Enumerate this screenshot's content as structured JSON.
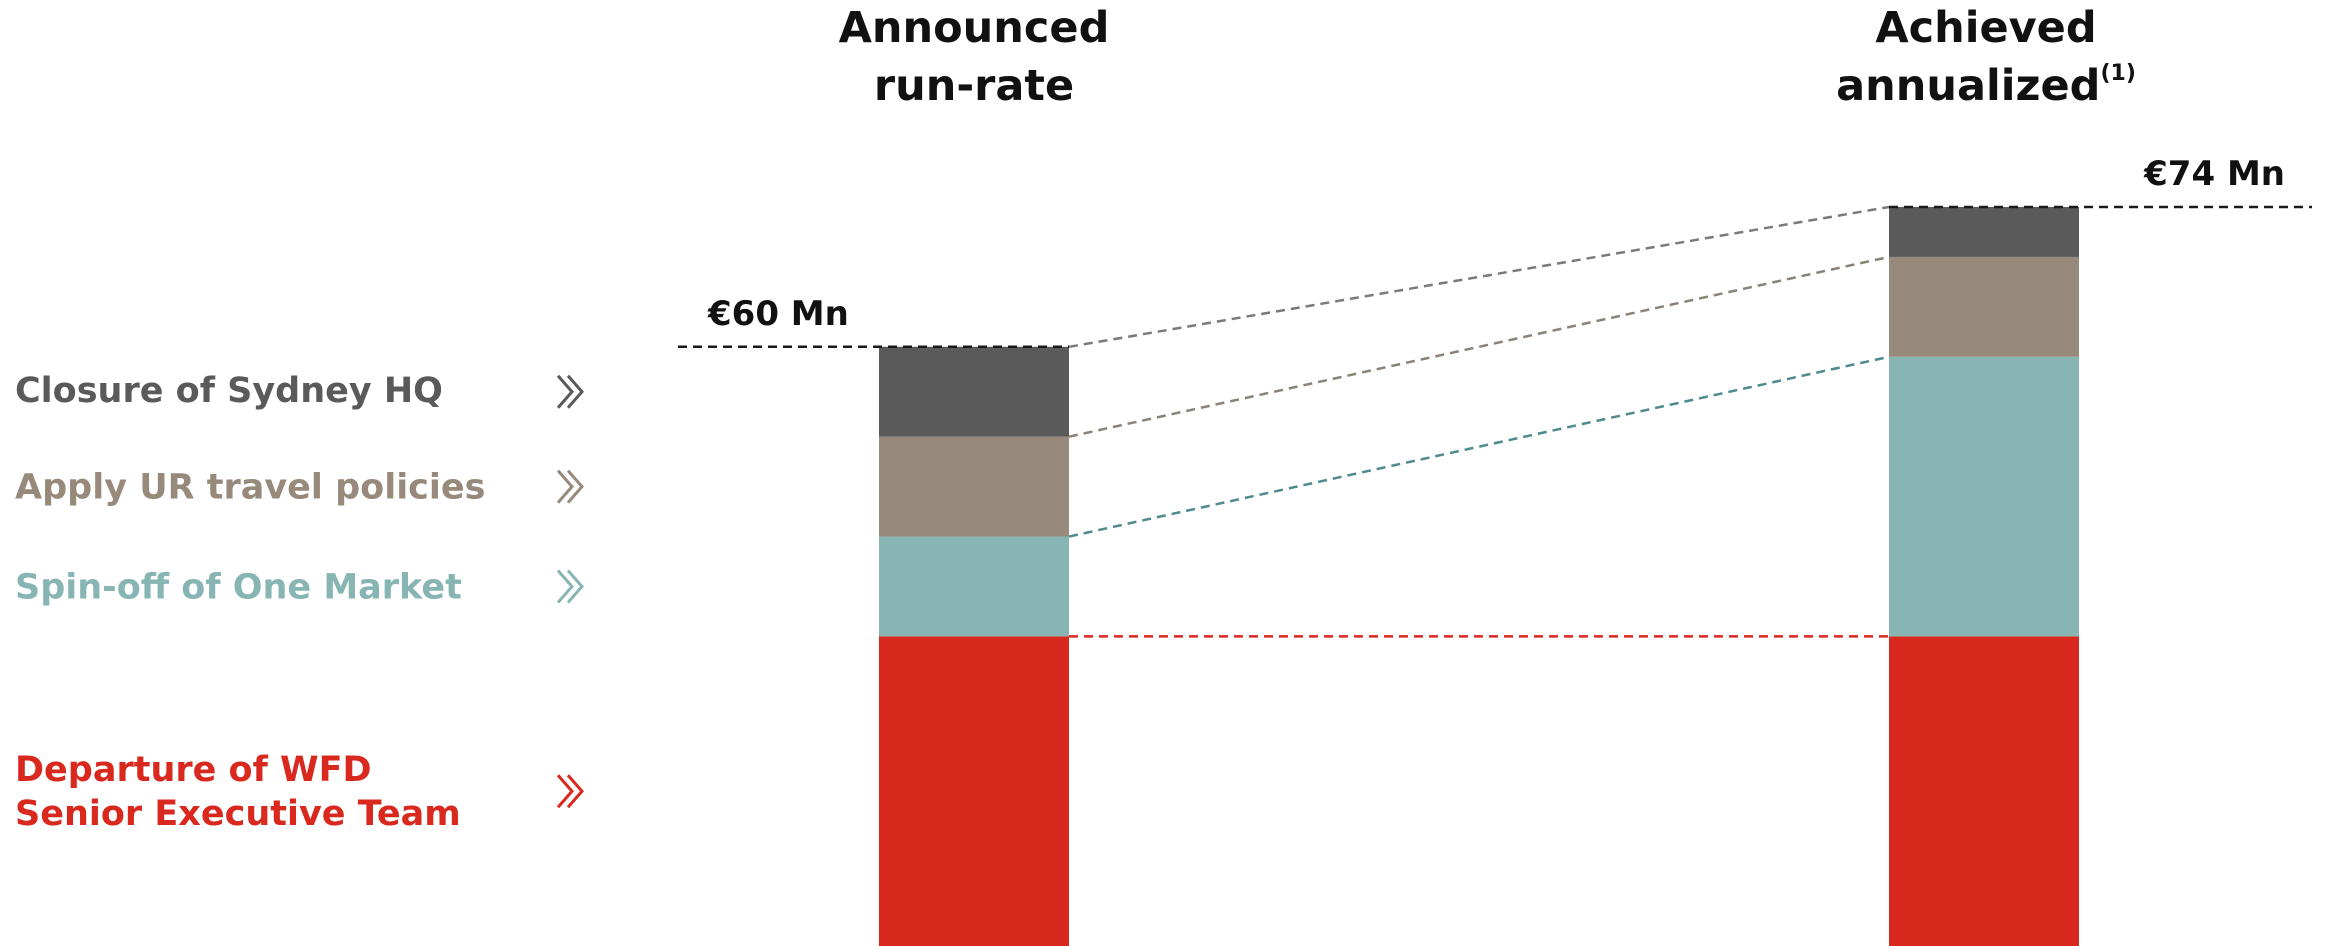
{
  "chart_data": {
    "type": "bar",
    "stacked": true,
    "categories": [
      "Announced run-rate",
      "Achieved annualized(1)"
    ],
    "category_titles": [
      {
        "lines": [
          "Announced",
          "run-rate"
        ],
        "superscript": ""
      },
      {
        "lines": [
          "Achieved",
          "annualized"
        ],
        "superscript": "(1)"
      }
    ],
    "totals": [
      {
        "value": 60,
        "label": "€60 Mn"
      },
      {
        "value": 74,
        "label": "€74 Mn"
      }
    ],
    "unit": "€ Mn",
    "ylim": [
      0,
      74
    ],
    "series": [
      {
        "name": "Departure of WFD Senior Executive Team",
        "label_lines": [
          "Departure of WFD",
          "Senior Executive Team"
        ],
        "color": "#d9281e",
        "connector_color": "#d9281e",
        "values": [
          31,
          31
        ]
      },
      {
        "name": "Spin-off of One Market",
        "label_lines": [
          "Spin-off of One Market"
        ],
        "color": "#87b5b4",
        "connector_color": "#4f8a8c",
        "values": [
          10,
          28
        ]
      },
      {
        "name": "Apply UR travel policies",
        "label_lines": [
          "Apply UR travel policies"
        ],
        "color": "#978a7b",
        "connector_color": "#8a8278",
        "values": [
          10,
          10
        ]
      },
      {
        "name": "Closure of Sydney HQ",
        "label_lines": [
          "Closure of Sydney HQ"
        ],
        "color": "#5a5a5a",
        "connector_color": "#7a7a7a",
        "values": [
          9,
          5
        ]
      }
    ],
    "legend_placement": "left",
    "grid": false
  }
}
